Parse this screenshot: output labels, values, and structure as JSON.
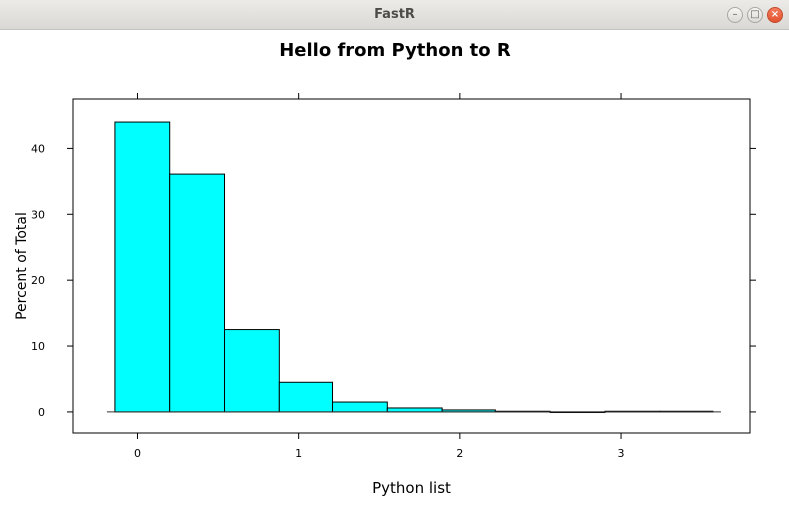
{
  "window": {
    "title": "FastR",
    "minimize_glyph": "–",
    "maximize_glyph": "□",
    "close_glyph": "×"
  },
  "chart_data": {
    "type": "bar",
    "title": "Hello from Python to R",
    "xlabel": "Python list",
    "ylabel": "Percent of Total",
    "bins": [
      {
        "from": -0.14,
        "to": 0.2,
        "value": 44
      },
      {
        "from": 0.2,
        "to": 0.54,
        "value": 36.1
      },
      {
        "from": 0.54,
        "to": 0.88,
        "value": 12.5
      },
      {
        "from": 0.88,
        "to": 1.21,
        "value": 4.5
      },
      {
        "from": 1.21,
        "to": 1.55,
        "value": 1.5
      },
      {
        "from": 1.55,
        "to": 1.89,
        "value": 0.6
      },
      {
        "from": 1.89,
        "to": 2.22,
        "value": 0.3
      },
      {
        "from": 2.22,
        "to": 2.56,
        "value": 0.1
      },
      {
        "from": 2.56,
        "to": 2.9,
        "value": 0
      },
      {
        "from": 2.9,
        "to": 3.24,
        "value": 0.1
      },
      {
        "from": 3.24,
        "to": 3.57,
        "value": 0.1
      }
    ],
    "xticks": [
      0,
      1,
      2,
      3
    ],
    "yticks": [
      0,
      10,
      20,
      30,
      40
    ],
    "xlim": [
      -0.4,
      3.8
    ],
    "ylim": [
      -3.2,
      47.5
    ],
    "bar_color": "#00ffff",
    "edge_color": "#000000"
  }
}
